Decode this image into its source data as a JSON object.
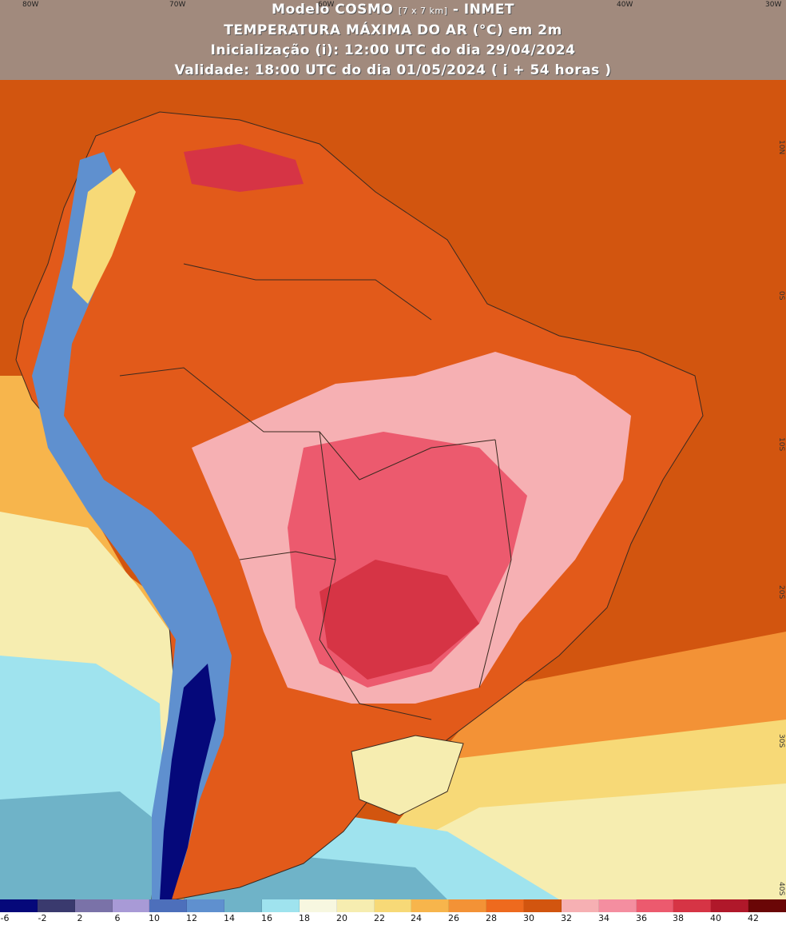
{
  "header": {
    "line1_model": "Modelo COSMO",
    "line1_res": "[7 x 7 km]",
    "line1_org": "- INMET",
    "line2": "TEMPERATURA MÁXIMA DO AR (°C) em 2m",
    "line3": "Inicialização (i): 12:00 UTC do dia 29/04/2024",
    "line4": "Validade: 18:00 UTC do dia 01/05/2024 ( i + 54 horas )"
  },
  "lon_labels": [
    "80W",
    "70W",
    "60W",
    "40W",
    "30W"
  ],
  "lat_labels": [
    "10N",
    "0S",
    "10S",
    "20S",
    "30S",
    "40S"
  ],
  "legend": {
    "tick_labels": [
      "-6",
      "-2",
      "2",
      "6",
      "10",
      "12",
      "14",
      "16",
      "18",
      "20",
      "22",
      "24",
      "26",
      "28",
      "30",
      "32",
      "34",
      "36",
      "38",
      "40",
      "42"
    ],
    "colors": [
      "#05087a",
      "#3a3a6e",
      "#7a72a8",
      "#a89ad6",
      "#4d6fbb",
      "#5f90cf",
      "#6fb3c8",
      "#9fe3ee",
      "#f7f7e0",
      "#f6edb0",
      "#f7d977",
      "#f7b54c",
      "#f39236",
      "#ee6a1e",
      "#d2550f",
      "#f6b0b3",
      "#f48ea0",
      "#ec5a6e",
      "#d63445",
      "#b0182a",
      "#6a0606"
    ]
  }
}
